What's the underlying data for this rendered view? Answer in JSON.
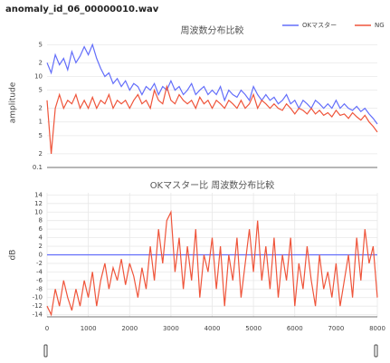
{
  "title": "anomaly_id_06_00000010.wav",
  "chart_data": [
    {
      "type": "line",
      "title": "周波数分布比較",
      "ylabel": "amplitude",
      "log_y": true,
      "grid": true,
      "legend": "top-right",
      "xlim": [
        0,
        8000
      ],
      "ylim": [
        0.1,
        70
      ],
      "yticks": [
        {
          "value": 50,
          "label": "5"
        },
        {
          "value": 20,
          "label": "2"
        },
        10,
        5,
        2,
        1,
        {
          "value": 0.5,
          "label": "5"
        },
        {
          "value": 0.2,
          "label": "2"
        },
        0.1
      ],
      "x": [
        0,
        100,
        200,
        300,
        400,
        500,
        600,
        700,
        800,
        900,
        1000,
        1100,
        1200,
        1300,
        1400,
        1500,
        1600,
        1700,
        1800,
        1900,
        2000,
        2100,
        2200,
        2300,
        2400,
        2500,
        2600,
        2700,
        2800,
        2900,
        3000,
        3100,
        3200,
        3300,
        3400,
        3500,
        3600,
        3700,
        3800,
        3900,
        4000,
        4100,
        4200,
        4300,
        4400,
        4500,
        4600,
        4700,
        4800,
        4900,
        5000,
        5100,
        5200,
        5300,
        5400,
        5500,
        5600,
        5700,
        5800,
        5900,
        6000,
        6100,
        6200,
        6300,
        6400,
        6500,
        6600,
        6700,
        6800,
        6900,
        7000,
        7100,
        7200,
        7300,
        7400,
        7500,
        7600,
        7700,
        7800,
        7900,
        8000
      ],
      "series": [
        {
          "name": "OKマスター",
          "color": "#636efa",
          "values": [
            20,
            12,
            30,
            18,
            25,
            14,
            35,
            20,
            28,
            45,
            30,
            50,
            25,
            15,
            10,
            12,
            7,
            9,
            6,
            8,
            5,
            7,
            6,
            4,
            6,
            5,
            7,
            4,
            6,
            5,
            8,
            5,
            6,
            4,
            5,
            7,
            4,
            5,
            6,
            4,
            5,
            4,
            6,
            3,
            5,
            4,
            3.5,
            5,
            4,
            3,
            6,
            4,
            3,
            4,
            3,
            3.5,
            2.5,
            3,
            4,
            2.5,
            3,
            2,
            3,
            2.5,
            2,
            3,
            2.5,
            2,
            2.5,
            2,
            3,
            2,
            2.5,
            2,
            1.8,
            2.2,
            1.7,
            2,
            1.5,
            1.2,
            0.9
          ]
        },
        {
          "name": "NG",
          "color": "#ef553b",
          "values": [
            3,
            0.2,
            2,
            4,
            2,
            3,
            2.5,
            4,
            2,
            3,
            2,
            3.5,
            2,
            3,
            2.5,
            4,
            2,
            3,
            2.5,
            3,
            2,
            3,
            4,
            2.5,
            3,
            2,
            5,
            3,
            2.5,
            6,
            3,
            2.5,
            4,
            3,
            2.5,
            3,
            2,
            3.5,
            2.5,
            3,
            2,
            3,
            2.5,
            2,
            3,
            2.5,
            2,
            3,
            2,
            2.5,
            4,
            2,
            3,
            2.5,
            2,
            2.5,
            2,
            1.8,
            2.5,
            2,
            1.5,
            2,
            1.8,
            1.5,
            2,
            1.5,
            1.8,
            1.4,
            1.6,
            1.3,
            1.8,
            1.4,
            1.5,
            1.2,
            1.6,
            1.3,
            1.1,
            1.4,
            1,
            0.8,
            0.6
          ]
        }
      ]
    },
    {
      "type": "line",
      "title": "OKマスター比 周波数分布比較",
      "ylabel": "dB",
      "grid": true,
      "xlim": [
        0,
        8000
      ],
      "ylim": [
        -14.5,
        14.5
      ],
      "xticks": [
        0,
        1000,
        2000,
        3000,
        4000,
        5000,
        6000,
        7000,
        8000
      ],
      "yticks": [
        14,
        12,
        10,
        8,
        6,
        4,
        2,
        0,
        -2,
        -4,
        -6,
        -8,
        -10,
        -12,
        -14
      ],
      "series": [
        {
          "name": "OKマスター",
          "color": "#636efa",
          "x": [
            0,
            8000
          ],
          "values": [
            0,
            0
          ]
        },
        {
          "name": "NG",
          "color": "#ef553b",
          "x": [
            0,
            100,
            200,
            300,
            400,
            500,
            600,
            700,
            800,
            900,
            1000,
            1100,
            1200,
            1300,
            1400,
            1500,
            1600,
            1700,
            1800,
            1900,
            2000,
            2100,
            2200,
            2300,
            2400,
            2500,
            2600,
            2700,
            2800,
            2900,
            3000,
            3100,
            3200,
            3300,
            3400,
            3500,
            3600,
            3700,
            3800,
            3900,
            4000,
            4100,
            4200,
            4300,
            4400,
            4500,
            4600,
            4700,
            4800,
            4900,
            5000,
            5100,
            5200,
            5300,
            5400,
            5500,
            5600,
            5700,
            5800,
            5900,
            6000,
            6100,
            6200,
            6300,
            6400,
            6500,
            6600,
            6700,
            6800,
            6900,
            7000,
            7100,
            7200,
            7300,
            7400,
            7500,
            7600,
            7700,
            7800,
            7900,
            8000
          ],
          "values": [
            -12,
            -14,
            -8,
            -12,
            -6,
            -10,
            -13,
            -8,
            -12,
            -6,
            -10,
            -4,
            -12,
            -6,
            -2,
            -8,
            -3,
            -6,
            -1,
            -7,
            -2,
            -5,
            -10,
            -3,
            -8,
            2,
            -6,
            6,
            -2,
            8,
            10,
            -4,
            4,
            -8,
            2,
            -6,
            6,
            -10,
            0,
            -4,
            4,
            -8,
            2,
            -12,
            0,
            -6,
            4,
            -10,
            -2,
            6,
            -4,
            8,
            -6,
            2,
            -8,
            4,
            -10,
            0,
            -6,
            4,
            -12,
            -2,
            -8,
            2,
            -6,
            -12,
            0,
            -8,
            -4,
            -10,
            -2,
            -12,
            -6,
            0,
            -10,
            4,
            -6,
            6,
            -2,
            2,
            -10
          ]
        }
      ]
    }
  ]
}
